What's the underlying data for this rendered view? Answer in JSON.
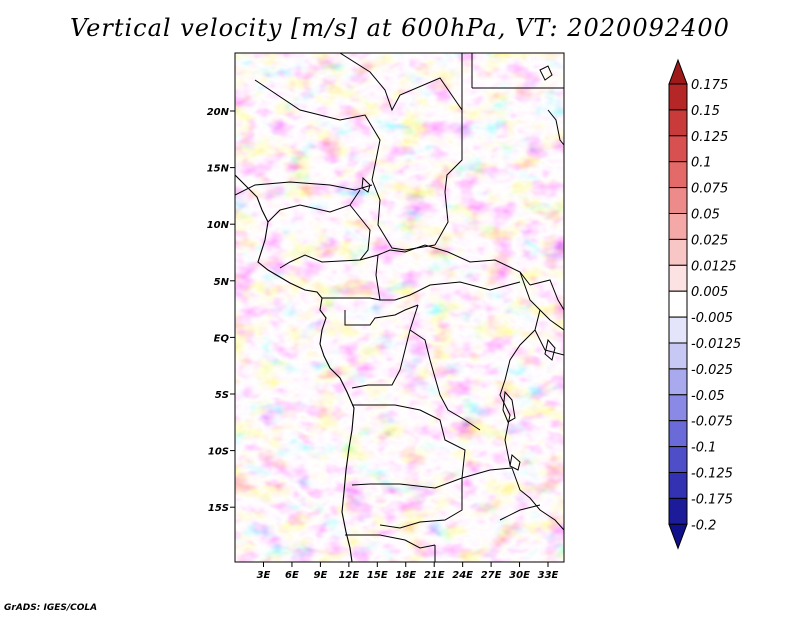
{
  "title": "Vertical velocity [m/s] at 600hPa, VT: 2020092400",
  "credit": "GrADS: IGES/COLA",
  "map": {
    "lon_ticks": [
      "3E",
      "6E",
      "9E",
      "12E",
      "15E",
      "18E",
      "21E",
      "24E",
      "27E",
      "30E",
      "33E"
    ],
    "lat_ticks": [
      "20N",
      "15N",
      "10N",
      "5N",
      "EQ",
      "5S",
      "10S",
      "15S"
    ]
  },
  "colorbar": {
    "labels": [
      "0.175",
      "0.15",
      "0.125",
      "0.1",
      "0.075",
      "0.05",
      "0.025",
      "0.0125",
      "0.005",
      "-0.005",
      "-0.0125",
      "-0.025",
      "-0.05",
      "-0.075",
      "-0.1",
      "-0.125",
      "-0.175",
      "-0.2"
    ],
    "colors": [
      "#9e1a1a",
      "#b52626",
      "#c93a3a",
      "#d95050",
      "#e46a6a",
      "#ed8a8a",
      "#f4a8a8",
      "#f9c6c6",
      "#fce2e2",
      "#ffffff",
      "#e4e4fa",
      "#c8c8f4",
      "#a9a9ee",
      "#8a8ae6",
      "#6a6ad8",
      "#4e4ec8",
      "#3232b2",
      "#1c1c9a",
      "#10108a"
    ]
  }
}
